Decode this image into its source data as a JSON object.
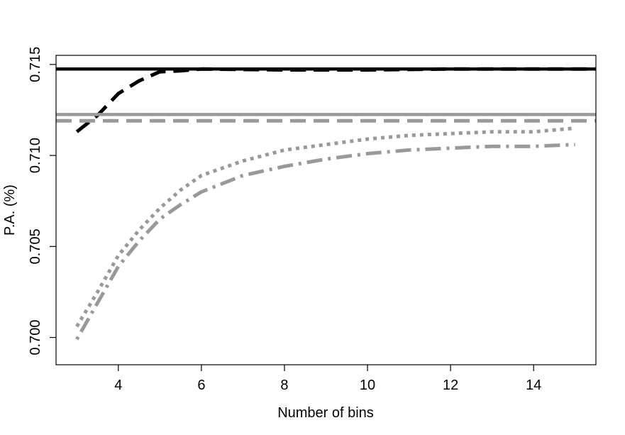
{
  "chart_data": {
    "type": "line",
    "title": "",
    "xlabel": "Number of bins",
    "ylabel": "P.A. (%)",
    "xlim": [
      2.5,
      15.5
    ],
    "ylim": [
      0.6985,
      0.7155
    ],
    "x_ticks": [
      4,
      6,
      8,
      10,
      12,
      14
    ],
    "x_tick_labels": [
      "4",
      "6",
      "8",
      "10",
      "12",
      "14"
    ],
    "y_ticks": [
      0.7,
      0.705,
      0.71,
      0.715
    ],
    "y_tick_labels": [
      "0.700",
      "0.705",
      "0.710",
      "0.715"
    ],
    "grid": false,
    "legend": "none",
    "series": [
      {
        "color": "#000000",
        "style": "solid",
        "values": [
          [
            2.5,
            0.71475
          ],
          [
            15.5,
            0.71475
          ]
        ]
      },
      {
        "color": "#000000",
        "style": "dashed",
        "values": [
          [
            3,
            0.7113
          ],
          [
            3.5,
            0.7122
          ],
          [
            4,
            0.7134
          ],
          [
            4.5,
            0.7141
          ],
          [
            5,
            0.7146
          ],
          [
            5.5,
            0.71465
          ],
          [
            6,
            0.71475
          ],
          [
            8,
            0.7147
          ],
          [
            10,
            0.7147
          ],
          [
            12,
            0.71475
          ],
          [
            15.5,
            0.71475
          ]
        ]
      },
      {
        "color": "#999999",
        "style": "solid",
        "values": [
          [
            2.5,
            0.71225
          ],
          [
            15.5,
            0.71225
          ]
        ]
      },
      {
        "color": "#999999",
        "style": "dashed",
        "values": [
          [
            2.5,
            0.7119
          ],
          [
            15.5,
            0.7119
          ]
        ]
      },
      {
        "color": "#999999",
        "style": "dotted",
        "values": [
          [
            3,
            0.7006
          ],
          [
            3.5,
            0.7025
          ],
          [
            4,
            0.7045
          ],
          [
            4.5,
            0.7059
          ],
          [
            5,
            0.7071
          ],
          [
            5.5,
            0.7081
          ],
          [
            6,
            0.7089
          ],
          [
            7,
            0.7097
          ],
          [
            8,
            0.7103
          ],
          [
            9,
            0.7106
          ],
          [
            10,
            0.7109
          ],
          [
            11,
            0.7111
          ],
          [
            12,
            0.7112
          ],
          [
            13,
            0.7113
          ],
          [
            14,
            0.7113
          ],
          [
            15,
            0.7115
          ]
        ]
      },
      {
        "color": "#999999",
        "style": "dotdash",
        "values": [
          [
            3,
            0.6999
          ],
          [
            3.5,
            0.7019
          ],
          [
            4,
            0.7039
          ],
          [
            4.5,
            0.7053
          ],
          [
            5,
            0.7065
          ],
          [
            5.5,
            0.7073
          ],
          [
            6,
            0.708
          ],
          [
            7,
            0.7089
          ],
          [
            8,
            0.7094
          ],
          [
            9,
            0.7098
          ],
          [
            10,
            0.7101
          ],
          [
            11,
            0.7103
          ],
          [
            12,
            0.7104
          ],
          [
            13,
            0.7105
          ],
          [
            14,
            0.7105
          ],
          [
            15,
            0.7106
          ]
        ]
      }
    ]
  }
}
